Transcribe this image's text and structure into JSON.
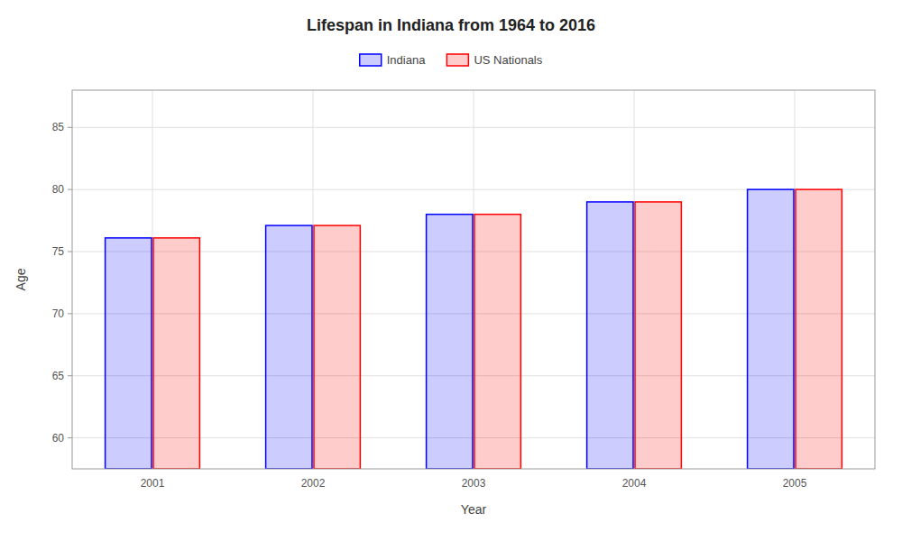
{
  "chart_data": {
    "type": "bar",
    "title": "Lifespan in Indiana from 1964 to 2016",
    "x_label": "Year",
    "y_label": "Age",
    "categories": [
      "2001",
      "2002",
      "2003",
      "2004",
      "2005"
    ],
    "series": [
      {
        "name": "Indiana",
        "color": "#0000ff",
        "values": [
          76.1,
          77.1,
          78.0,
          79.0,
          80.0
        ]
      },
      {
        "name": "US Nationals",
        "color": "#ff0000",
        "values": [
          76.1,
          77.1,
          78.0,
          79.0,
          80.0
        ]
      }
    ],
    "ylim": [
      57.5,
      88
    ],
    "yticks": [
      60,
      65,
      70,
      75,
      80,
      85
    ],
    "grid": true,
    "legend": "top"
  }
}
